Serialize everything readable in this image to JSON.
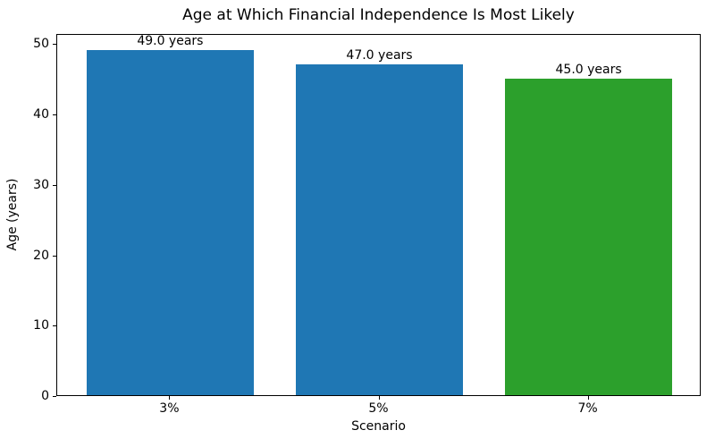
{
  "chart_data": {
    "type": "bar",
    "title": "Age at Which Financial Independence Is Most Likely",
    "xlabel": "Scenario",
    "ylabel": "Age (years)",
    "categories": [
      "3%",
      "5%",
      "7%"
    ],
    "values": [
      49.0,
      47.0,
      45.0
    ],
    "bar_labels": [
      "49.0 years",
      "47.0 years",
      "45.0 years"
    ],
    "bar_colors": [
      "#1f77b4",
      "#1f77b4",
      "#2ca02c"
    ],
    "yticks": [
      0,
      10,
      20,
      30,
      40,
      50
    ],
    "ylim": [
      0,
      51.45
    ],
    "bar_width_fraction": 0.8,
    "grid": false,
    "legend_position": "none",
    "spine_color": "#000000",
    "background_color": "#ffffff"
  }
}
